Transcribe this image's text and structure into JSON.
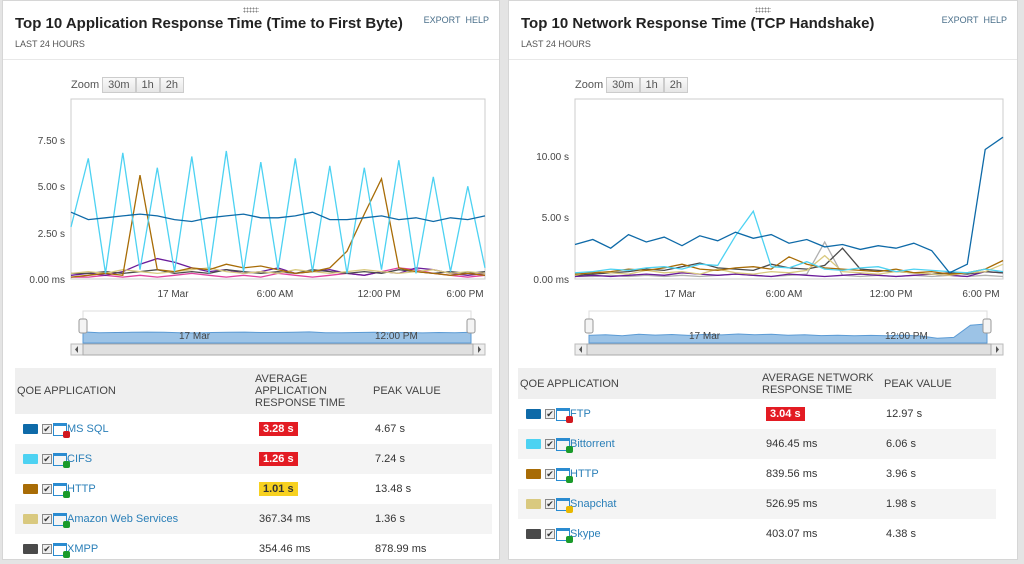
{
  "left": {
    "title": "Top 10 Application Response Time (Time to First Byte)",
    "subtitle": "LAST 24 HOURS",
    "links": [
      "EXPORT",
      "HELP"
    ],
    "zoom_label": "Zoom",
    "zoom_options": [
      "30m",
      "1h",
      "2h"
    ],
    "yticks": [
      "7.50 s",
      "5.00 s",
      "2.50 s",
      "0.00 ms"
    ],
    "xticks": [
      "17 Mar",
      "6:00 AM",
      "12:00 PM",
      "6:00 PM"
    ],
    "nav_labels": [
      "17 Mar",
      "12:00 PM"
    ],
    "columns": [
      "QOE APPLICATION",
      "AVERAGE APPLICATION RESPONSE TIME",
      "PEAK VALUE"
    ],
    "rows": [
      {
        "color": "#0e6aa8",
        "status": "#d0181f",
        "name": "MS SQL",
        "avg": "3.28 s",
        "badge": "#e31b23",
        "badge_text": "#fff",
        "peak": "4.67 s"
      },
      {
        "color": "#4dd2f2",
        "status": "#1a9a2a",
        "name": "CIFS",
        "avg": "1.26 s",
        "badge": "#e31b23",
        "badge_text": "#fff",
        "peak": "7.24 s"
      },
      {
        "color": "#a86c06",
        "status": "#1a9a2a",
        "name": "HTTP",
        "avg": "1.01 s",
        "badge": "#f7d120",
        "badge_text": "#333",
        "peak": "13.48 s"
      },
      {
        "color": "#d9c97f",
        "status": "#1a9a2a",
        "name": "Amazon Web Services",
        "avg": "367.34 ms",
        "badge": "",
        "peak": "1.36 s"
      },
      {
        "color": "#4a4a4a",
        "status": "#1a9a2a",
        "name": "XMPP",
        "avg": "354.46 ms",
        "badge": "",
        "peak": "878.99 ms"
      }
    ]
  },
  "right": {
    "title": "Top 10 Network Response Time (TCP Handshake)",
    "subtitle": "LAST 24 HOURS",
    "links": [
      "EXPORT",
      "HELP"
    ],
    "zoom_label": "Zoom",
    "zoom_options": [
      "30m",
      "1h",
      "2h"
    ],
    "yticks": [
      "10.00 s",
      "5.00 s",
      "0.00 ms"
    ],
    "xticks": [
      "17 Mar",
      "6:00 AM",
      "12:00 PM",
      "6:00 PM"
    ],
    "nav_labels": [
      "17 Mar",
      "12:00 PM"
    ],
    "columns": [
      "QOE APPLICATION",
      "AVERAGE NETWORK RESPONSE TIME",
      "PEAK VALUE"
    ],
    "rows": [
      {
        "color": "#0e6aa8",
        "status": "#d0181f",
        "name": "FTP",
        "avg": "3.04 s",
        "badge": "#e31b23",
        "badge_text": "#fff",
        "peak": "12.97 s"
      },
      {
        "color": "#4dd2f2",
        "status": "#1a9a2a",
        "name": "Bittorrent",
        "avg": "946.45 ms",
        "badge": "",
        "peak": "6.06 s"
      },
      {
        "color": "#a86c06",
        "status": "#1a9a2a",
        "name": "HTTP",
        "avg": "839.56 ms",
        "badge": "",
        "peak": "3.96 s"
      },
      {
        "color": "#d9c97f",
        "status": "#e8b800",
        "name": "Snapchat",
        "avg": "526.95 ms",
        "badge": "",
        "peak": "1.98 s"
      },
      {
        "color": "#4a4a4a",
        "status": "#1a9a2a",
        "name": "Skype",
        "avg": "403.07 ms",
        "badge": "",
        "peak": "4.38 s"
      }
    ]
  },
  "chart_data": [
    {
      "type": "line",
      "ylim": [
        0,
        9.7
      ],
      "x_range": [
        "16 Mar 6:00 PM",
        "17 Mar 6:00 PM"
      ],
      "grid": false,
      "series": [
        {
          "name": "MS SQL",
          "color": "#0e6aa8",
          "values": [
            3.6,
            3.2,
            3.3,
            3.4,
            3.5,
            3.4,
            3.2,
            3.1,
            3.3,
            3.4,
            3.5,
            3.3,
            3.3,
            3.4,
            3.6,
            3.2,
            3.2,
            3.3,
            3.4,
            3.2,
            3.3,
            3.1,
            3.3,
            3.2,
            3.4
          ]
        },
        {
          "name": "CIFS",
          "color": "#4dd2f2",
          "values": [
            2.8,
            6.5,
            0.3,
            6.8,
            0.5,
            6.0,
            0.4,
            6.6,
            0.3,
            6.9,
            0.4,
            6.3,
            0.5,
            6.5,
            0.4,
            6.1,
            0.3,
            6.0,
            0.5,
            6.4,
            0.3,
            5.5,
            0.4,
            5.0,
            0.6
          ]
        },
        {
          "name": "HTTP",
          "color": "#a86c06",
          "values": [
            0.1,
            0.2,
            0.3,
            0.2,
            5.6,
            0.5,
            0.4,
            0.6,
            0.5,
            0.8,
            0.6,
            0.7,
            0.5,
            0.3,
            0.4,
            0.6,
            1.5,
            3.5,
            5.4,
            0.6,
            0.4,
            0.3,
            0.2,
            0.3,
            0.2
          ]
        },
        {
          "name": "Amazon Web Services",
          "color": "#d9c97f",
          "values": [
            0.3,
            0.4,
            0.3,
            0.5,
            0.4,
            0.3,
            0.4,
            0.5,
            0.6,
            0.4,
            0.3,
            0.4,
            0.3,
            0.5,
            0.4,
            0.3,
            0.4,
            0.5,
            0.4,
            0.3,
            0.4,
            0.5,
            0.3,
            0.4,
            0.3
          ]
        },
        {
          "name": "XMPP",
          "color": "#4a4a4a",
          "values": [
            0.3,
            0.3,
            0.4,
            0.3,
            0.4,
            0.5,
            0.3,
            0.4,
            0.3,
            0.5,
            0.4,
            0.3,
            0.4,
            0.3,
            0.5,
            0.4,
            0.3,
            0.4,
            0.3,
            0.5,
            0.4,
            0.3,
            0.4,
            0.3,
            0.4
          ]
        },
        {
          "color": "#6a1b9a",
          "values": [
            0.2,
            0.3,
            0.2,
            0.4,
            0.8,
            1.1,
            0.9,
            0.6,
            0.4,
            0.5,
            0.3,
            0.4,
            0.6,
            0.3,
            0.4,
            0.5,
            0.3,
            0.2,
            0.4,
            0.3,
            0.6,
            0.5,
            0.3,
            0.2,
            0.3
          ]
        },
        {
          "color": "#e040a0",
          "values": [
            0.1,
            0.1,
            0.2,
            0.1,
            0.2,
            0.1,
            0.2,
            0.3,
            0.2,
            0.1,
            0.2,
            0.1,
            0.3,
            0.2,
            0.1,
            0.2,
            0.3,
            0.2,
            0.4,
            0.6,
            0.5,
            0.3,
            0.2,
            0.1,
            0.2
          ]
        }
      ]
    },
    {
      "type": "line",
      "ylim": [
        0,
        14.6
      ],
      "x_range": [
        "16 Mar 6:00 PM",
        "17 Mar 6:00 PM"
      ],
      "grid": false,
      "series": [
        {
          "name": "FTP",
          "color": "#0e6aa8",
          "values": [
            2.8,
            3.2,
            2.5,
            3.6,
            3.0,
            3.4,
            2.7,
            3.5,
            3.1,
            3.8,
            3.3,
            3.6,
            2.9,
            3.2,
            2.6,
            2.8,
            2.4,
            2.7,
            2.5,
            2.9,
            2.3,
            0.5,
            1.2,
            10.5,
            11.5
          ]
        },
        {
          "name": "Bittorrent",
          "color": "#4dd2f2",
          "values": [
            0.5,
            0.6,
            0.8,
            0.7,
            0.9,
            1.0,
            0.8,
            1.2,
            1.1,
            3.5,
            5.5,
            1.0,
            0.9,
            1.4,
            0.8,
            0.7,
            0.9,
            1.0,
            0.6,
            0.8,
            0.7,
            0.6,
            0.5,
            0.8,
            0.6
          ]
        },
        {
          "name": "HTTP",
          "color": "#a86c06",
          "values": [
            0.4,
            0.5,
            0.6,
            0.8,
            0.7,
            0.9,
            1.2,
            0.8,
            0.7,
            0.9,
            1.0,
            0.8,
            1.8,
            1.2,
            0.9,
            0.8,
            0.7,
            0.6,
            0.8,
            0.5,
            0.6,
            0.4,
            0.5,
            0.8,
            1.5
          ]
        },
        {
          "name": "Snapchat",
          "color": "#d9c97f",
          "values": [
            0.3,
            0.6,
            0.5,
            0.4,
            0.7,
            0.5,
            0.6,
            0.4,
            0.8,
            0.5,
            0.4,
            0.6,
            0.5,
            0.7,
            1.9,
            0.6,
            0.5,
            0.4,
            0.6,
            0.5,
            0.4,
            0.3,
            0.5,
            0.6,
            1.2
          ]
        },
        {
          "name": "Skype",
          "color": "#4a4a4a",
          "values": [
            0.3,
            0.4,
            0.5,
            0.6,
            0.8,
            0.7,
            1.0,
            1.3,
            0.9,
            0.8,
            0.7,
            1.2,
            0.9,
            0.8,
            1.1,
            2.5,
            0.8,
            0.7,
            0.6,
            0.5,
            0.4,
            0.5,
            0.4,
            0.6,
            0.5
          ]
        },
        {
          "color": "#6a1b9a",
          "values": [
            0.2,
            0.3,
            0.2,
            0.3,
            0.4,
            0.3,
            0.5,
            0.4,
            0.3,
            0.4,
            0.3,
            0.2,
            0.4,
            0.3,
            0.2,
            0.3,
            0.4,
            0.3,
            0.2,
            0.3,
            0.4,
            0.3,
            0.2,
            0.6,
            0.5
          ]
        },
        {
          "color": "#b0b0b0",
          "values": [
            0.2,
            0.2,
            0.3,
            0.2,
            0.3,
            0.2,
            0.3,
            0.2,
            0.3,
            0.4,
            0.3,
            0.2,
            0.3,
            0.4,
            3.0,
            0.3,
            0.2,
            0.3,
            0.2,
            0.3,
            0.2,
            0.3,
            0.2,
            0.3,
            0.2
          ]
        }
      ]
    }
  ]
}
